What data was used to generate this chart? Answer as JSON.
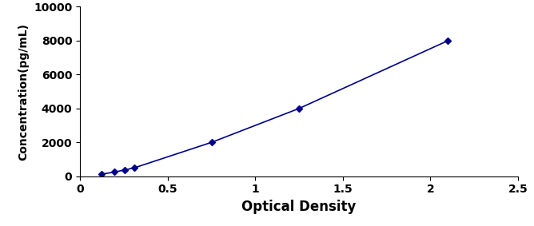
{
  "x": [
    0.123,
    0.196,
    0.255,
    0.31,
    0.75,
    1.25,
    2.1
  ],
  "y": [
    125,
    250,
    375,
    500,
    2000,
    4000,
    8000
  ],
  "line_color": "#00008B",
  "marker": "D",
  "marker_size": 4,
  "marker_color": "#00008B",
  "xlabel": "Optical Density",
  "ylabel": "Concentration(pg/mL)",
  "xlim": [
    0,
    2.5
  ],
  "ylim": [
    0,
    10000
  ],
  "xticks": [
    0,
    0.5,
    1,
    1.5,
    2,
    2.5
  ],
  "yticks": [
    0,
    2000,
    4000,
    6000,
    8000,
    10000
  ],
  "xlabel_fontsize": 12,
  "ylabel_fontsize": 10,
  "tick_fontsize": 10,
  "line_width": 1.2,
  "linestyle": "-"
}
